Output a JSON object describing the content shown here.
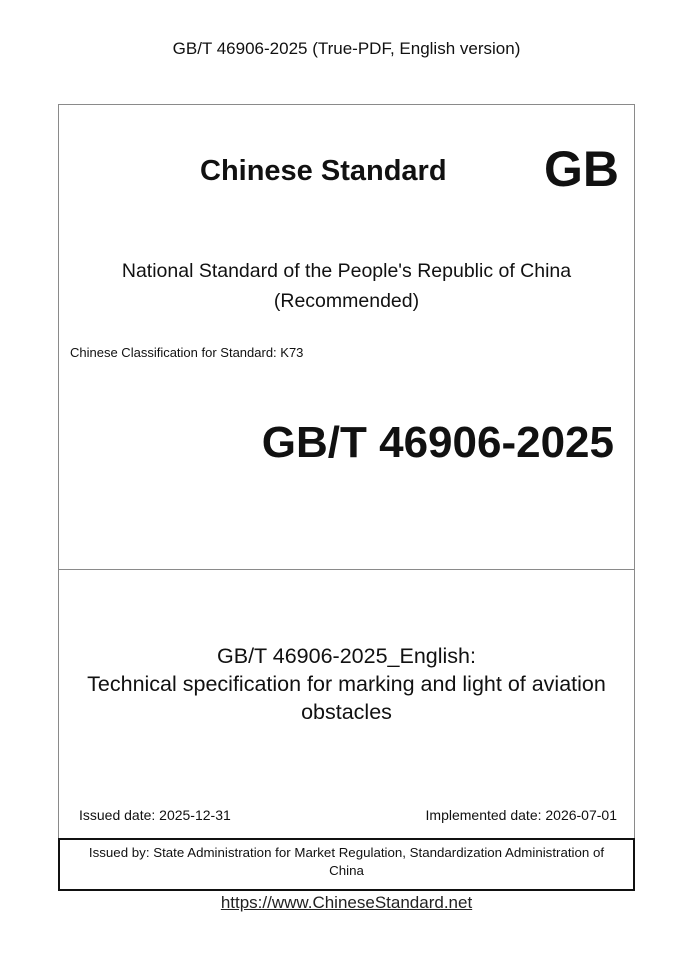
{
  "header": "GB/T 46906-2025 (True-PDF, English version)",
  "cover": {
    "brand": "Chinese Standard",
    "mark": "GB",
    "national_line1": "National Standard of the People's Republic of China",
    "national_line2": "(Recommended)",
    "classification": "Chinese Classification for Standard: K73",
    "standard_number": "GB/T 46906-2025",
    "title_line1": "GB/T 46906-2025_English:",
    "title_line2": "Technical specification for marking and light of aviation",
    "title_line3": "obstacles",
    "issued_date": "Issued date: 2025-12-31",
    "implemented_date": "Implemented date: 2026-07-01",
    "issued_by_line1": "Issued by: State Administration for Market Regulation, Standardization Administration of",
    "issued_by_line2": "China"
  },
  "footer_link": "https://www.ChineseStandard.net"
}
